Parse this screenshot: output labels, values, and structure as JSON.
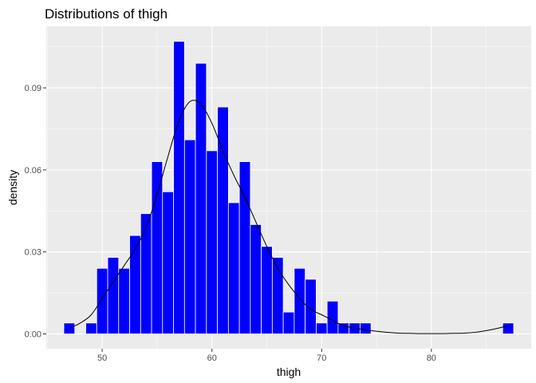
{
  "chart_data": {
    "type": "bar",
    "title": "Distributions of thigh",
    "xlabel": "thigh",
    "ylabel": "density",
    "xlim": [
      44.9,
      89.1
    ],
    "ylim": [
      -0.0054,
      0.1125
    ],
    "x_ticks": [
      50,
      60,
      70,
      80
    ],
    "x_tick_labels": [
      "50",
      "60",
      "70",
      "80"
    ],
    "y_ticks": [
      0.0,
      0.03,
      0.06,
      0.09
    ],
    "y_tick_labels": [
      "0.00",
      "0.03",
      "0.06",
      "0.09"
    ],
    "grid": true,
    "panel_background": "#ebebeb",
    "bar_color": "#0000ff",
    "bar_outline": "#ffffff",
    "bin_width": 1,
    "histogram": {
      "x": [
        47,
        49,
        50,
        51,
        52,
        53,
        54,
        55,
        56,
        57,
        58,
        59,
        60,
        61,
        62,
        63,
        64,
        65,
        66,
        67,
        68,
        69,
        70,
        71,
        72,
        73,
        74,
        87
      ],
      "values": [
        0.004,
        0.004,
        0.024,
        0.028,
        0.024,
        0.036,
        0.044,
        0.063,
        0.052,
        0.107,
        0.071,
        0.099,
        0.067,
        0.083,
        0.048,
        0.063,
        0.04,
        0.032,
        0.028,
        0.008,
        0.024,
        0.02,
        0.004,
        0.012,
        0.004,
        0.004,
        0.004,
        0.004
      ]
    },
    "density_curve": {
      "x": [
        47,
        48,
        49,
        50,
        51,
        52,
        53,
        54,
        55,
        56,
        57,
        58,
        59,
        60,
        61,
        62,
        63,
        64,
        65,
        66,
        67,
        68,
        69,
        70,
        71,
        72,
        73,
        74,
        75,
        76,
        77,
        78,
        79,
        80,
        81,
        82,
        83,
        84,
        85,
        86,
        87
      ],
      "values": [
        0.002,
        0.004,
        0.007,
        0.013,
        0.019,
        0.025,
        0.031,
        0.039,
        0.051,
        0.065,
        0.078,
        0.085,
        0.084,
        0.077,
        0.067,
        0.058,
        0.05,
        0.041,
        0.032,
        0.024,
        0.018,
        0.013,
        0.009,
        0.007,
        0.005,
        0.003,
        0.0022,
        0.0015,
        0.001,
        0.0006,
        0.0003,
        0.0002,
        0.0001,
        0.0001,
        0.0001,
        0.0002,
        0.0003,
        0.0006,
        0.0012,
        0.002,
        0.003
      ]
    }
  }
}
